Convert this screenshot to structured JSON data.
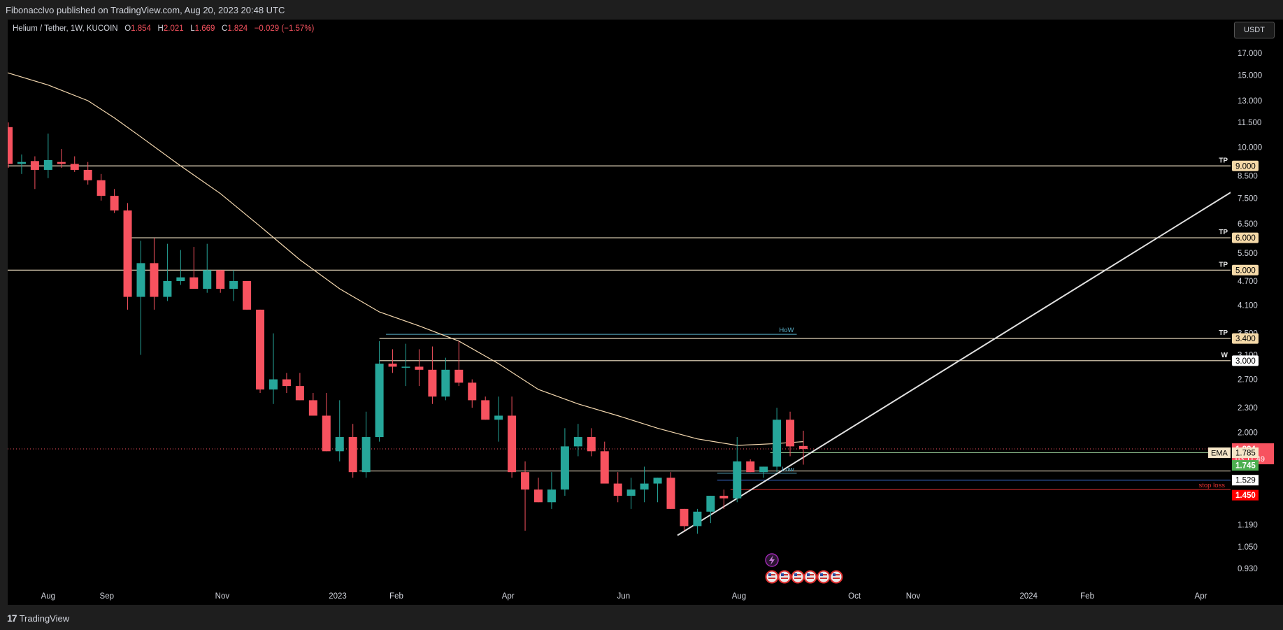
{
  "header": {
    "published": "Fibonacclvo published on TradingView.com, Aug 20, 2023 20:48 UTC"
  },
  "legend": {
    "symbol": "Helium / Tether, 1W, KUCOIN",
    "o_label": "O",
    "o": "1.854",
    "h_label": "H",
    "h": "2.021",
    "l_label": "L",
    "l": "1.669",
    "c_label": "C",
    "c": "1.824",
    "change": "−0.029 (−1.57%)"
  },
  "currency": "USDT",
  "footer": {
    "brand": "TradingView"
  },
  "colors": {
    "up": "#26a69a",
    "down": "#f7525f",
    "ema": "#f5d9b0",
    "level": "#f5e6c8",
    "axis_bg": "#000000"
  },
  "chart_data": {
    "type": "candlestick",
    "scale": "log",
    "x_start": "2022-07-11",
    "x_interval": "1W",
    "ylim": [
      0.88,
      19.5
    ],
    "y_ticks": [
      0.93,
      1.05,
      1.19,
      2.0,
      2.3,
      2.7,
      3.1,
      3.5,
      4.1,
      4.7,
      5.5,
      6.5,
      7.5,
      8.5,
      10.0,
      11.5,
      13.0,
      15.0,
      17.0
    ],
    "y_tick_labels": [
      "0.930",
      "1.050",
      "1.190",
      "2.000",
      "2.300",
      "2.700",
      "3.100",
      "3.500",
      "4.100",
      "4.700",
      "5.500",
      "6.500",
      "7.500",
      "8.500",
      "10.000",
      "11.500",
      "13.000",
      "15.000",
      "17.000"
    ],
    "x_ticks": [
      {
        "label": "Aug",
        "date": "2022-08-01"
      },
      {
        "label": "Sep",
        "date": "2022-09-01"
      },
      {
        "label": "Nov",
        "date": "2022-11-01"
      },
      {
        "label": "2023",
        "date": "2023-01-01"
      },
      {
        "label": "Feb",
        "date": "2023-02-01"
      },
      {
        "label": "Apr",
        "date": "2023-04-01"
      },
      {
        "label": "Jun",
        "date": "2023-06-01"
      },
      {
        "label": "Aug",
        "date": "2023-08-01"
      },
      {
        "label": "Oct",
        "date": "2023-10-01"
      },
      {
        "label": "Nov",
        "date": "2023-11-01"
      },
      {
        "label": "2024",
        "date": "2024-01-01"
      },
      {
        "label": "Feb",
        "date": "2024-02-01"
      },
      {
        "label": "Apr",
        "date": "2024-04-01"
      }
    ],
    "x_end": "2024-04-22",
    "candles": [
      [
        11.2,
        11.5,
        8.9,
        9.1
      ],
      [
        9.1,
        9.6,
        8.6,
        9.2
      ],
      [
        9.25,
        9.5,
        7.9,
        8.8
      ],
      [
        8.8,
        10.8,
        8.4,
        9.3
      ],
      [
        9.2,
        9.9,
        8.9,
        9.1
      ],
      [
        9.1,
        9.5,
        8.7,
        8.8
      ],
      [
        8.8,
        9.2,
        8.1,
        8.3
      ],
      [
        8.3,
        8.6,
        7.4,
        7.6
      ],
      [
        7.6,
        7.9,
        6.9,
        7.0
      ],
      [
        7.0,
        7.3,
        4.0,
        4.3
      ],
      [
        4.3,
        5.9,
        3.1,
        5.2
      ],
      [
        5.2,
        6.0,
        4.0,
        4.3
      ],
      [
        4.3,
        5.8,
        4.2,
        4.7
      ],
      [
        4.7,
        5.6,
        4.6,
        4.8
      ],
      [
        4.8,
        5.7,
        4.5,
        4.5
      ],
      [
        4.5,
        5.8,
        4.4,
        5.0
      ],
      [
        5.0,
        5.0,
        4.4,
        4.5
      ],
      [
        4.5,
        5.0,
        4.2,
        4.7
      ],
      [
        4.7,
        4.7,
        4.0,
        4.0
      ],
      [
        4.0,
        4.0,
        2.5,
        2.55
      ],
      [
        2.55,
        3.5,
        2.35,
        2.7
      ],
      [
        2.7,
        2.8,
        2.5,
        2.6
      ],
      [
        2.6,
        2.8,
        2.4,
        2.4
      ],
      [
        2.4,
        2.5,
        2.2,
        2.2
      ],
      [
        2.2,
        2.5,
        1.8,
        1.8
      ],
      [
        1.8,
        2.4,
        1.7,
        1.95
      ],
      [
        1.95,
        2.1,
        1.55,
        1.6
      ],
      [
        1.6,
        2.25,
        1.55,
        1.95
      ],
      [
        1.95,
        3.35,
        1.9,
        2.95
      ],
      [
        2.95,
        3.2,
        2.8,
        2.9
      ],
      [
        2.9,
        3.3,
        2.6,
        2.9
      ],
      [
        2.9,
        3.2,
        2.6,
        2.85
      ],
      [
        2.85,
        3.25,
        2.35,
        2.45
      ],
      [
        2.45,
        3.05,
        2.4,
        2.85
      ],
      [
        2.85,
        3.35,
        2.6,
        2.65
      ],
      [
        2.65,
        2.7,
        2.3,
        2.4
      ],
      [
        2.4,
        2.45,
        2.15,
        2.15
      ],
      [
        2.15,
        2.45,
        1.9,
        2.2
      ],
      [
        2.2,
        2.45,
        1.55,
        1.6
      ],
      [
        1.6,
        1.7,
        1.15,
        1.45
      ],
      [
        1.45,
        1.55,
        1.35,
        1.35
      ],
      [
        1.35,
        1.6,
        1.3,
        1.45
      ],
      [
        1.45,
        2.05,
        1.4,
        1.85
      ],
      [
        1.85,
        2.1,
        1.75,
        1.95
      ],
      [
        1.95,
        2.05,
        1.75,
        1.8
      ],
      [
        1.8,
        1.9,
        1.55,
        1.5
      ],
      [
        1.5,
        1.6,
        1.35,
        1.4
      ],
      [
        1.4,
        1.55,
        1.3,
        1.45
      ],
      [
        1.45,
        1.65,
        1.35,
        1.5
      ],
      [
        1.5,
        1.55,
        1.35,
        1.55
      ],
      [
        1.55,
        1.6,
        1.3,
        1.3
      ],
      [
        1.3,
        1.3,
        1.15,
        1.18
      ],
      [
        1.18,
        1.3,
        1.13,
        1.28
      ],
      [
        1.28,
        1.4,
        1.2,
        1.4
      ],
      [
        1.4,
        1.45,
        1.3,
        1.38
      ],
      [
        1.38,
        1.95,
        1.35,
        1.7
      ],
      [
        1.7,
        1.72,
        1.6,
        1.6
      ],
      [
        1.6,
        1.65,
        1.55,
        1.65
      ],
      [
        1.65,
        2.3,
        1.6,
        2.15
      ],
      [
        2.15,
        2.25,
        1.75,
        1.85
      ],
      [
        1.854,
        2.021,
        1.669,
        1.824
      ]
    ],
    "ema": [
      [
        -8,
        18.5
      ],
      [
        -4,
        16.5
      ],
      [
        0,
        15.2
      ],
      [
        3,
        14.2
      ],
      [
        6,
        13.0
      ],
      [
        8,
        11.8
      ],
      [
        10,
        10.6
      ],
      [
        13,
        9.0
      ],
      [
        16,
        7.7
      ],
      [
        19,
        6.4
      ],
      [
        22,
        5.3
      ],
      [
        25,
        4.5
      ],
      [
        28,
        3.95
      ],
      [
        31,
        3.65
      ],
      [
        34,
        3.35
      ],
      [
        37,
        2.95
      ],
      [
        40,
        2.55
      ],
      [
        43,
        2.35
      ],
      [
        46,
        2.2
      ],
      [
        49,
        2.05
      ],
      [
        52,
        1.93
      ],
      [
        55,
        1.86
      ],
      [
        58,
        1.88
      ],
      [
        60,
        1.9
      ]
    ],
    "levels": [
      {
        "price": 9.0,
        "label": "9.000",
        "tag": "TP",
        "start": 0
      },
      {
        "price": 6.0,
        "label": "6.000",
        "tag": "TP",
        "start": 9
      },
      {
        "price": 5.0,
        "label": "5.000",
        "tag": "TP",
        "start": 0
      },
      {
        "price": 3.4,
        "label": "3.400",
        "tag": "TP",
        "start": 28
      },
      {
        "price": 3.0,
        "label": "3.000",
        "tag": "W",
        "start": 28
      }
    ],
    "short_lines": [
      {
        "price": 3.48,
        "label": "HoW",
        "start": 28.5,
        "end": 59.5,
        "color": "#5ab0c8"
      },
      {
        "price": 1.59,
        "label": "Low",
        "start": 53.5,
        "end": 59.5,
        "color": "#5ab0c8"
      },
      {
        "price": 1.61,
        "label": "",
        "start": 26.5,
        "end": 999,
        "color": "#f5e6c8"
      },
      {
        "price": 1.529,
        "label": "",
        "start": 53.5,
        "end": 999,
        "color": "#3a6fd8"
      },
      {
        "price": 1.45,
        "label": "stop loss",
        "start": 54.5,
        "end": 999,
        "color": "#e03030"
      },
      {
        "price": 1.785,
        "label": "",
        "start": 57.5,
        "end": 999,
        "color": "#9ed39e"
      }
    ],
    "trendline": {
      "from": [
        50.5,
        1.12
      ],
      "to": [
        94.5,
        8.6
      ]
    },
    "current_price": {
      "value": 1.824,
      "label": "1.824",
      "countdown": "03:11:49"
    },
    "price_tags": [
      {
        "label": "1.785",
        "value": 1.785,
        "prefix": "EMA",
        "bg": "#f5e6c8",
        "color": "#000000"
      },
      {
        "label": "1.745",
        "value": 1.662,
        "bg": "#4caf50",
        "color": "#ffffff"
      },
      {
        "label": "1.529",
        "value": 1.529,
        "bg": "#ffffff",
        "color": "#000000"
      },
      {
        "label": "1.450",
        "value": 1.405,
        "bg": "#ff0000",
        "color": "#ffffff"
      }
    ]
  }
}
